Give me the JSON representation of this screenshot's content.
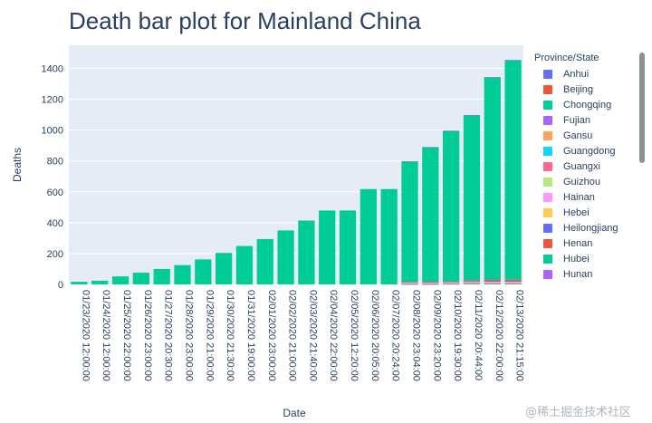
{
  "chart_data": {
    "type": "bar",
    "title": "Death bar plot for Mainland China",
    "xlabel": "Date",
    "ylabel": "Deaths",
    "ylim": [
      0,
      1550
    ],
    "yticks": [
      0,
      200,
      400,
      600,
      800,
      1000,
      1200,
      1400
    ],
    "grid": true,
    "barmode": "stack",
    "legend_title": "Province/State",
    "legend_placement": "right",
    "categories": [
      "01/23/2020 12:00:00",
      "01/24/2020 12:00:00",
      "01/25/2020 22:00:00",
      "01/26/2020 23:00:00",
      "01/27/2020 20:30:00",
      "01/28/2020 23:00:00",
      "01/29/2020 21:00:00",
      "01/30/2020 21:30:00",
      "01/31/2020 19:00:00",
      "02/01/2020 23:00:00",
      "02/02/2020 21:00:00",
      "02/03/2020 21:40:00",
      "02/04/2020 22:00:00",
      "02/05/2020 12:20:00",
      "02/06/2020 20:05:00",
      "02/07/2020 20:24:00",
      "02/08/2020 23:04:00",
      "02/09/2020 23:20:00",
      "02/10/2020 19:30:00",
      "02/11/2020 20:44:00",
      "02/12/2020 22:00:00",
      "02/13/2020 21:15:00"
    ],
    "series": [
      {
        "name": "Anhui",
        "color": "#636efa",
        "values": [
          0,
          0,
          0,
          0,
          0,
          0,
          0,
          0,
          0,
          0,
          0,
          0,
          0,
          0,
          0,
          0,
          1,
          1,
          2,
          3,
          3,
          3
        ]
      },
      {
        "name": "Beijing",
        "color": "#ef553b",
        "values": [
          0,
          0,
          0,
          0,
          0,
          0,
          0,
          0,
          0,
          0,
          0,
          0,
          0,
          0,
          0,
          0,
          1,
          1,
          1,
          1,
          1,
          1
        ]
      },
      {
        "name": "Chongqing",
        "color": "#00cc96",
        "values": [
          0,
          0,
          0,
          0,
          0,
          0,
          0,
          0,
          0,
          0,
          0,
          0,
          0,
          0,
          0,
          0,
          1,
          1,
          1,
          1,
          1,
          1
        ]
      },
      {
        "name": "Fujian",
        "color": "#ab63fa",
        "values": [
          0,
          0,
          0,
          0,
          0,
          0,
          0,
          0,
          0,
          0,
          0,
          0,
          0,
          0,
          0,
          0,
          1,
          1,
          1,
          1,
          1,
          1
        ]
      },
      {
        "name": "Gansu",
        "color": "#ffa15a",
        "values": [
          0,
          0,
          0,
          0,
          0,
          0,
          0,
          0,
          0,
          0,
          0,
          0,
          0,
          0,
          0,
          0,
          1,
          1,
          1,
          1,
          1,
          1
        ]
      },
      {
        "name": "Guangdong",
        "color": "#19d3f3",
        "values": [
          0,
          0,
          0,
          0,
          0,
          0,
          0,
          0,
          0,
          0,
          0,
          0,
          0,
          0,
          0,
          0,
          1,
          1,
          1,
          2,
          2,
          2
        ]
      },
      {
        "name": "Guangxi",
        "color": "#ff6692",
        "values": [
          0,
          0,
          0,
          0,
          0,
          0,
          0,
          0,
          0,
          0,
          0,
          0,
          0,
          0,
          0,
          0,
          1,
          1,
          1,
          1,
          1,
          1
        ]
      },
      {
        "name": "Guizhou",
        "color": "#b6e880",
        "values": [
          0,
          0,
          0,
          0,
          0,
          0,
          0,
          0,
          0,
          0,
          0,
          0,
          0,
          0,
          0,
          0,
          1,
          1,
          1,
          1,
          1,
          1
        ]
      },
      {
        "name": "Hainan",
        "color": "#ff97ff",
        "values": [
          0,
          0,
          0,
          0,
          0,
          0,
          0,
          0,
          0,
          0,
          0,
          0,
          0,
          0,
          0,
          0,
          1,
          1,
          2,
          3,
          3,
          3
        ]
      },
      {
        "name": "Hebei",
        "color": "#fecb52",
        "values": [
          0,
          0,
          0,
          0,
          0,
          0,
          0,
          0,
          0,
          0,
          0,
          0,
          0,
          0,
          0,
          0,
          2,
          2,
          2,
          2,
          3,
          3
        ]
      },
      {
        "name": "Heilongjiang",
        "color": "#636efa",
        "values": [
          0,
          0,
          0,
          0,
          0,
          0,
          0,
          0,
          0,
          0,
          0,
          0,
          0,
          0,
          0,
          0,
          3,
          3,
          4,
          6,
          7,
          8
        ]
      },
      {
        "name": "Henan",
        "color": "#ef553b",
        "values": [
          0,
          0,
          0,
          0,
          0,
          0,
          0,
          0,
          0,
          0,
          0,
          0,
          0,
          0,
          0,
          0,
          3,
          4,
          4,
          6,
          8,
          8
        ]
      },
      {
        "name": "Hubei",
        "color": "#00cc96",
        "values": [
          17,
          24,
          52,
          76,
          100,
          125,
          162,
          204,
          249,
          294,
          350,
          414,
          479,
          479,
          618,
          618,
          780,
          871,
          974,
          1068,
          1310,
          1420
        ]
      },
      {
        "name": "Hunan",
        "color": "#ab63fa",
        "values": [
          0,
          0,
          0,
          0,
          0,
          0,
          0,
          0,
          0,
          0,
          0,
          0,
          0,
          0,
          0,
          0,
          2,
          2,
          2,
          2,
          2,
          2
        ]
      }
    ]
  },
  "watermark": "@稀土掘金技术社区"
}
